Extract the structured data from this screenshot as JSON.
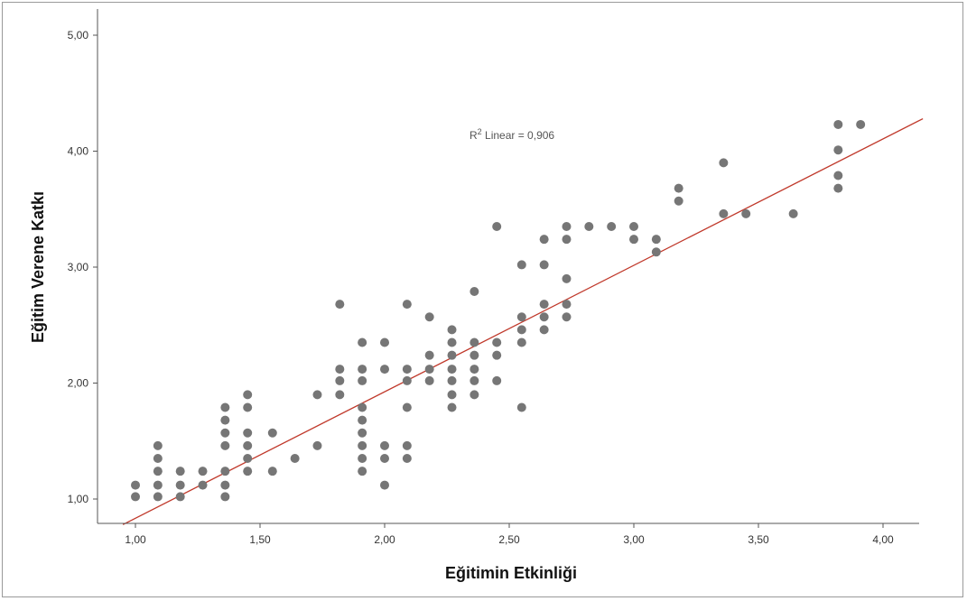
{
  "chart_data": {
    "type": "scatter",
    "title": "",
    "xlabel": "Eğitimin Etkinliği",
    "ylabel": "Eğitim Verene Katkı",
    "xlim": [
      0.85,
      4.16
    ],
    "ylim": [
      0.8,
      5.2
    ],
    "xticks": [
      1.0,
      1.5,
      2.0,
      2.5,
      3.0,
      3.5,
      4.0
    ],
    "yticks": [
      1.0,
      2.0,
      3.0,
      4.0,
      5.0
    ],
    "xtick_labels": [
      "1,00",
      "1,50",
      "2,00",
      "2,50",
      "3,00",
      "3,50",
      "4,00"
    ],
    "ytick_labels": [
      "1,00",
      "2,00",
      "3,00",
      "4,00",
      "5,00"
    ],
    "grid": false,
    "colors": {
      "points": "#767676",
      "fit_line": "#c0392b",
      "axis": "#555555"
    },
    "fit_line": {
      "type": "linear",
      "x": [
        0.95,
        4.16
      ],
      "y": [
        0.78,
        4.28
      ]
    },
    "annotation": {
      "prefix": "R",
      "superscript": "2",
      "text": " Linear = 0,906"
    },
    "points": [
      [
        1.0,
        1.02
      ],
      [
        1.0,
        1.12
      ],
      [
        1.09,
        1.02
      ],
      [
        1.09,
        1.12
      ],
      [
        1.09,
        1.24
      ],
      [
        1.09,
        1.35
      ],
      [
        1.09,
        1.46
      ],
      [
        1.18,
        1.02
      ],
      [
        1.18,
        1.12
      ],
      [
        1.18,
        1.24
      ],
      [
        1.27,
        1.12
      ],
      [
        1.27,
        1.24
      ],
      [
        1.36,
        1.02
      ],
      [
        1.36,
        1.12
      ],
      [
        1.36,
        1.24
      ],
      [
        1.36,
        1.46
      ],
      [
        1.36,
        1.57
      ],
      [
        1.36,
        1.68
      ],
      [
        1.36,
        1.79
      ],
      [
        1.45,
        1.24
      ],
      [
        1.45,
        1.35
      ],
      [
        1.45,
        1.46
      ],
      [
        1.45,
        1.57
      ],
      [
        1.45,
        1.79
      ],
      [
        1.45,
        1.9
      ],
      [
        1.55,
        1.24
      ],
      [
        1.55,
        1.57
      ],
      [
        1.64,
        1.35
      ],
      [
        1.73,
        1.46
      ],
      [
        1.73,
        1.9
      ],
      [
        1.82,
        1.9
      ],
      [
        1.82,
        2.02
      ],
      [
        1.82,
        2.12
      ],
      [
        1.82,
        2.68
      ],
      [
        1.91,
        1.24
      ],
      [
        1.91,
        1.35
      ],
      [
        1.91,
        1.46
      ],
      [
        1.91,
        1.57
      ],
      [
        1.91,
        1.68
      ],
      [
        1.91,
        1.79
      ],
      [
        1.91,
        2.02
      ],
      [
        1.91,
        2.12
      ],
      [
        1.91,
        2.35
      ],
      [
        2.0,
        1.12
      ],
      [
        2.0,
        1.35
      ],
      [
        2.0,
        1.46
      ],
      [
        2.0,
        2.12
      ],
      [
        2.0,
        2.35
      ],
      [
        2.09,
        1.35
      ],
      [
        2.09,
        1.46
      ],
      [
        2.09,
        1.79
      ],
      [
        2.09,
        2.02
      ],
      [
        2.09,
        2.12
      ],
      [
        2.09,
        2.68
      ],
      [
        2.18,
        2.02
      ],
      [
        2.18,
        2.12
      ],
      [
        2.18,
        2.24
      ],
      [
        2.18,
        2.57
      ],
      [
        2.27,
        1.79
      ],
      [
        2.27,
        1.9
      ],
      [
        2.27,
        2.02
      ],
      [
        2.27,
        2.12
      ],
      [
        2.27,
        2.24
      ],
      [
        2.27,
        2.35
      ],
      [
        2.27,
        2.46
      ],
      [
        2.36,
        1.9
      ],
      [
        2.36,
        2.02
      ],
      [
        2.36,
        2.12
      ],
      [
        2.36,
        2.24
      ],
      [
        2.36,
        2.35
      ],
      [
        2.36,
        2.79
      ],
      [
        2.45,
        2.02
      ],
      [
        2.45,
        2.24
      ],
      [
        2.45,
        2.35
      ],
      [
        2.45,
        3.35
      ],
      [
        2.55,
        1.79
      ],
      [
        2.55,
        2.35
      ],
      [
        2.55,
        2.46
      ],
      [
        2.55,
        2.57
      ],
      [
        2.55,
        3.02
      ],
      [
        2.64,
        2.46
      ],
      [
        2.64,
        2.57
      ],
      [
        2.64,
        2.68
      ],
      [
        2.64,
        3.02
      ],
      [
        2.64,
        3.24
      ],
      [
        2.73,
        2.57
      ],
      [
        2.73,
        2.68
      ],
      [
        2.73,
        2.9
      ],
      [
        2.73,
        3.24
      ],
      [
        2.73,
        3.35
      ],
      [
        2.82,
        3.35
      ],
      [
        2.91,
        3.35
      ],
      [
        3.0,
        3.24
      ],
      [
        3.0,
        3.35
      ],
      [
        3.09,
        3.13
      ],
      [
        3.09,
        3.24
      ],
      [
        3.18,
        3.57
      ],
      [
        3.18,
        3.68
      ],
      [
        3.36,
        3.46
      ],
      [
        3.36,
        3.9
      ],
      [
        3.45,
        3.46
      ],
      [
        3.64,
        3.46
      ],
      [
        3.82,
        3.68
      ],
      [
        3.82,
        3.79
      ],
      [
        3.82,
        4.01
      ],
      [
        3.82,
        4.23
      ],
      [
        3.91,
        4.23
      ]
    ]
  }
}
